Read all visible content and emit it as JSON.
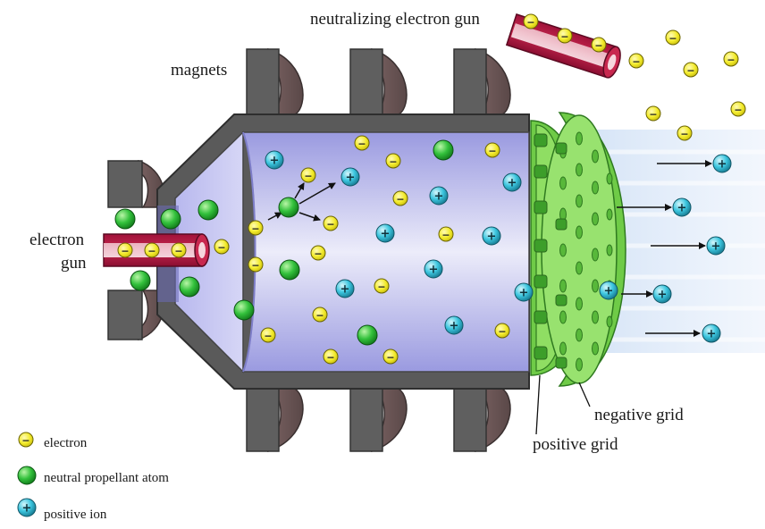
{
  "labels": {
    "neutralizing_gun": "neutralizing electron gun",
    "magnets": "magnets",
    "electron_gun_line1": "electron",
    "electron_gun_line2": "gun",
    "negative_grid": "negative grid",
    "positive_grid": "positive grid"
  },
  "legend": {
    "electron": "electron",
    "neutral": "neutral propellant atom",
    "ion": "positive ion"
  },
  "symbols": {
    "minus": "−",
    "plus": "+"
  },
  "colors": {
    "electron": "#f2ea2a",
    "neutral": "#2fc13a",
    "ion": "#3cc6df",
    "gun": "#b0193f",
    "magnet": "#5f5f5f",
    "chamber": "#b3b3ee",
    "grid": "#8fde63"
  }
}
